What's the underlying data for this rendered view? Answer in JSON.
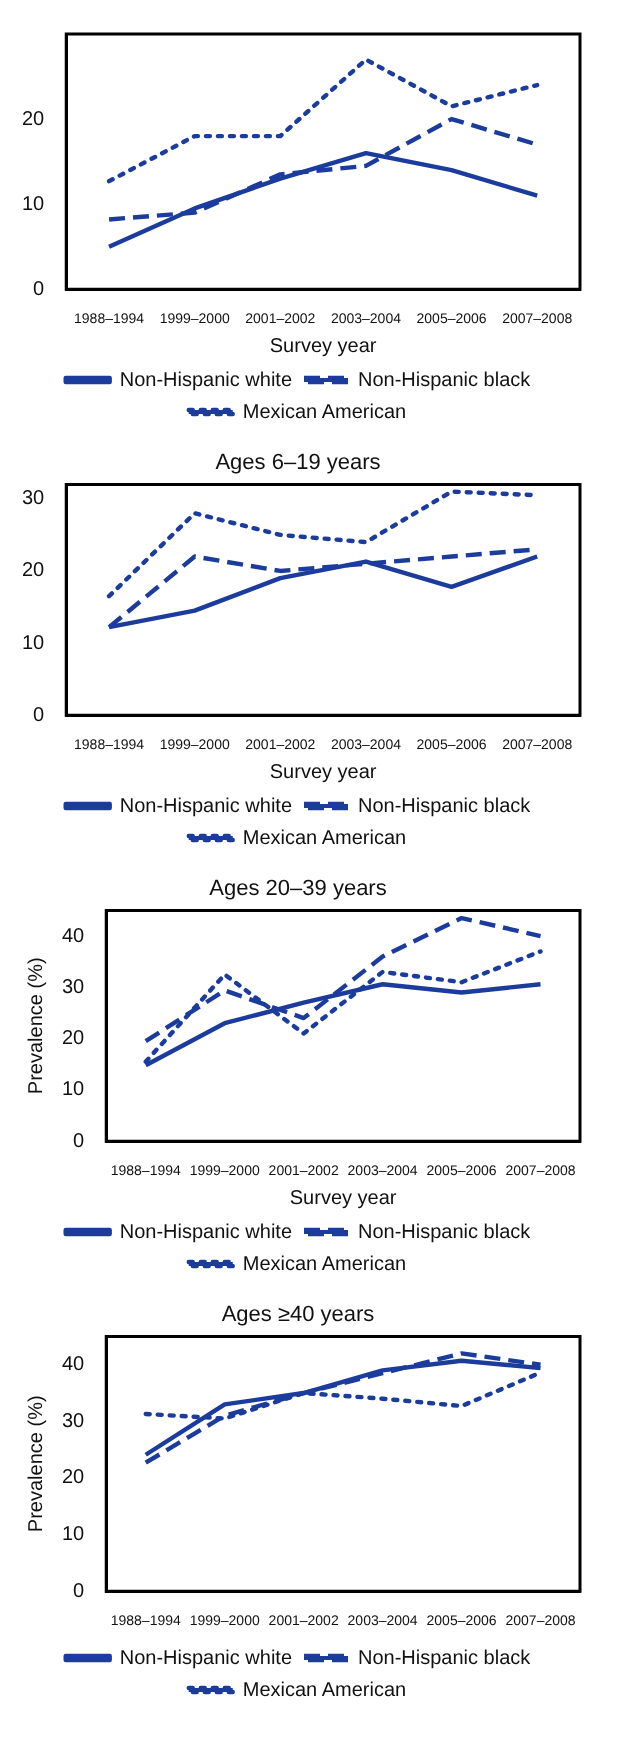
{
  "chart_data": [
    {
      "type": "line",
      "xlabel": "Survey year",
      "categories": [
        "1988–1994",
        "1999–2000",
        "2001–2002",
        "2003–2004",
        "2005–2006",
        "2007–2008"
      ],
      "ylim": [
        0,
        30
      ],
      "yticks": [
        0,
        10,
        20
      ],
      "legend": "bottom",
      "grid": false,
      "marker": "none",
      "series": [
        {
          "name": "Non-Hispanic white",
          "color": "#1b3c9c",
          "line_style": "solid",
          "values": [
            5,
            9.5,
            13,
            16,
            14,
            11
          ]
        },
        {
          "name": "Non-Hispanic black",
          "color": "#1b3c9c",
          "line_style": "dashed",
          "values": [
            8.2,
            9,
            13.5,
            14.5,
            20,
            17
          ]
        },
        {
          "name": "Mexican American",
          "color": "#1b3c9c",
          "line_style": "dotted",
          "values": [
            12.7,
            18,
            18,
            27,
            21.5,
            24
          ]
        }
      ]
    },
    {
      "type": "line",
      "title": "Ages 6–19 years",
      "xlabel": "Survey year",
      "categories": [
        "1988–1994",
        "1999–2000",
        "2001–2002",
        "2003–2004",
        "2005–2006",
        "2007–2008"
      ],
      "ylim": [
        0,
        32
      ],
      "yticks": [
        0,
        10,
        20,
        30
      ],
      "legend": "bottom",
      "grid": false,
      "marker": "none",
      "series": [
        {
          "name": "Non-Hispanic white",
          "color": "#1b3c9c",
          "line_style": "solid",
          "values": [
            12.2,
            14.5,
            19,
            21.3,
            17.8,
            22
          ]
        },
        {
          "name": "Non-Hispanic black",
          "color": "#1b3c9c",
          "line_style": "dashed",
          "values": [
            12.2,
            22,
            20,
            21,
            22,
            23
          ]
        },
        {
          "name": "Mexican American",
          "color": "#1b3c9c",
          "line_style": "dotted",
          "values": [
            16.5,
            28,
            25,
            24,
            31,
            30.5
          ]
        }
      ]
    },
    {
      "type": "line",
      "title": "Ages 20–39 years",
      "xlabel": "Survey year",
      "ylabel": "Prevalence (%)",
      "categories": [
        "1988–1994",
        "1999–2000",
        "2001–2002",
        "2003–2004",
        "2005–2006",
        "2007–2008"
      ],
      "ylim": [
        0,
        45
      ],
      "yticks": [
        0,
        10,
        20,
        30,
        40
      ],
      "legend": "bottom",
      "grid": false,
      "marker": "none",
      "series": [
        {
          "name": "Non-Hispanic white",
          "color": "#1b3c9c",
          "line_style": "solid",
          "values": [
            14.8,
            23,
            27,
            30.6,
            29,
            30.6
          ]
        },
        {
          "name": "Non-Hispanic black",
          "color": "#1b3c9c",
          "line_style": "dashed",
          "values": [
            19.5,
            29.4,
            24,
            36,
            43.5,
            40
          ]
        },
        {
          "name": "Mexican American",
          "color": "#1b3c9c",
          "line_style": "dotted",
          "values": [
            15.5,
            32.5,
            21,
            33,
            31,
            37
          ]
        }
      ]
    },
    {
      "type": "line",
      "title": "Ages ≥40 years",
      "ylabel": "Prevalence (%)",
      "categories": [
        "1988–1994",
        "1999–2000",
        "2001–2002",
        "2003–2004",
        "2005–2006",
        "2007–2008"
      ],
      "ylim": [
        0,
        45
      ],
      "yticks": [
        0,
        10,
        20,
        30,
        40
      ],
      "legend": "bottom",
      "grid": false,
      "marker": "none",
      "series": [
        {
          "name": "Non-Hispanic white",
          "color": "#1b3c9c",
          "line_style": "solid",
          "values": [
            24.1,
            33,
            35,
            39,
            40.7,
            39.4
          ]
        },
        {
          "name": "Non-Hispanic black",
          "color": "#1b3c9c",
          "line_style": "dashed",
          "values": [
            22.7,
            31,
            35,
            38.5,
            42,
            40
          ]
        },
        {
          "name": "Mexican American",
          "color": "#1b3c9c",
          "line_style": "dotted",
          "values": [
            31.3,
            30.5,
            35,
            34,
            32.7,
            38.6
          ]
        }
      ]
    }
  ]
}
